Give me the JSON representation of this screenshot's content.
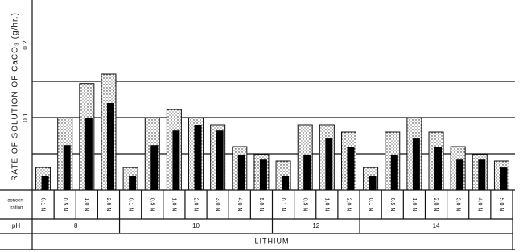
{
  "chart_data": {
    "type": "bar",
    "ylabel": "RATE OF SOLUTION OF CaCO₃ (g/hr.)",
    "groups": [
      {
        "label": "8",
        "categories": [
          "0.1 N",
          "0.5 N",
          "1.0 N",
          "2.0 N"
        ]
      },
      {
        "label": "10",
        "categories": [
          "0.1 N",
          "0.5 N",
          "1.0 N",
          "2.0 N",
          "3.0 N",
          "4.0 N",
          "5.0 N"
        ]
      },
      {
        "label": "12",
        "categories": [
          "0.1 N",
          "0.5 N",
          "1.0 N",
          "2.0 N"
        ]
      },
      {
        "label": "14",
        "categories": [
          "0.1 N",
          "0.5 N",
          "1.0 N",
          "2.0 N",
          "3.0 N",
          "4.0 N",
          "5.0 N"
        ]
      }
    ],
    "row_labels": {
      "concentration": [
        "concen-",
        "tration"
      ],
      "ph": "pH",
      "bottom": "LITHIUM"
    },
    "series": [
      {
        "color": "stipple",
        "values": [
          0.031,
          0.1,
          0.147,
          0.16,
          0.031,
          0.1,
          0.111,
          0.1,
          0.09,
          0.06,
          0.049,
          0.04,
          0.09,
          0.09,
          0.08,
          0.031,
          0.08,
          0.1,
          0.08,
          0.06,
          0.049,
          0.04
        ]
      },
      {
        "color": "#000000",
        "values": [
          0.02,
          0.062,
          0.1,
          0.12,
          0.02,
          0.062,
          0.082,
          0.09,
          0.082,
          0.049,
          0.042,
          0.02,
          0.049,
          0.071,
          0.06,
          0.02,
          0.049,
          0.071,
          0.06,
          0.042,
          0.042,
          0.031
        ]
      }
    ],
    "ylim": [
      0,
      0.25
    ],
    "yticks": [
      0.1,
      0.2
    ],
    "grid_lines": [
      0.05,
      0.1,
      0.15
    ]
  }
}
